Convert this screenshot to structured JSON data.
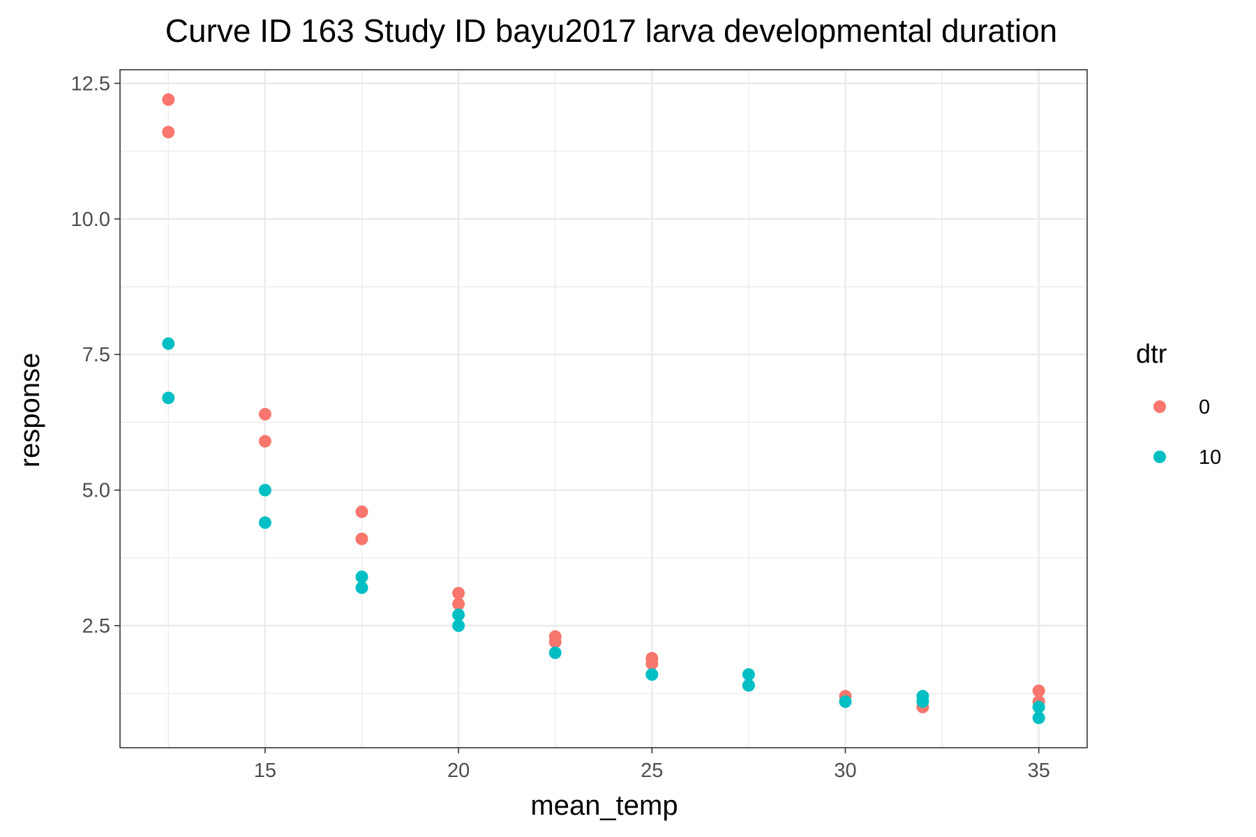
{
  "chart_data": {
    "type": "scatter",
    "title": "Curve ID 163 Study ID bayu2017 larva developmental duration",
    "xlabel": "mean_temp",
    "ylabel": "response",
    "xlim": [
      11.25,
      36.25
    ],
    "ylim": [
      0.25,
      12.75
    ],
    "x_ticks": [
      15,
      20,
      25,
      30,
      35
    ],
    "x_tick_labels": [
      "15",
      "20",
      "25",
      "30",
      "35"
    ],
    "y_ticks": [
      2.5,
      5.0,
      7.5,
      10.0,
      12.5
    ],
    "y_tick_labels": [
      "2.5",
      "5.0",
      "7.5",
      "10.0",
      "12.5"
    ],
    "grid": true,
    "legend": {
      "title": "dtr",
      "position": "right",
      "entries": [
        {
          "label": "0",
          "color": "#F8766D"
        },
        {
          "label": "10",
          "color": "#00BFC4"
        }
      ]
    },
    "series": [
      {
        "name": "0",
        "color": "#F8766D",
        "points": [
          [
            12.5,
            12.2
          ],
          [
            12.5,
            11.6
          ],
          [
            15,
            6.4
          ],
          [
            15,
            5.9
          ],
          [
            17.5,
            4.6
          ],
          [
            17.5,
            4.1
          ],
          [
            20,
            3.1
          ],
          [
            20,
            2.9
          ],
          [
            22.5,
            2.3
          ],
          [
            22.5,
            2.2
          ],
          [
            25,
            1.9
          ],
          [
            25,
            1.8
          ],
          [
            27.5,
            1.4
          ],
          [
            30,
            1.2
          ],
          [
            32,
            1.0
          ],
          [
            35,
            1.3
          ],
          [
            35,
            1.1
          ]
        ]
      },
      {
        "name": "10",
        "color": "#00BFC4",
        "points": [
          [
            12.5,
            7.7
          ],
          [
            12.5,
            6.7
          ],
          [
            15,
            5.0
          ],
          [
            15,
            4.4
          ],
          [
            17.5,
            3.4
          ],
          [
            17.5,
            3.2
          ],
          [
            20,
            2.7
          ],
          [
            20,
            2.5
          ],
          [
            22.5,
            2.0
          ],
          [
            25,
            1.6
          ],
          [
            27.5,
            1.6
          ],
          [
            27.5,
            1.4
          ],
          [
            30,
            1.1
          ],
          [
            32,
            1.2
          ],
          [
            32,
            1.1
          ],
          [
            35,
            1.0
          ],
          [
            35,
            0.8
          ]
        ]
      }
    ]
  }
}
